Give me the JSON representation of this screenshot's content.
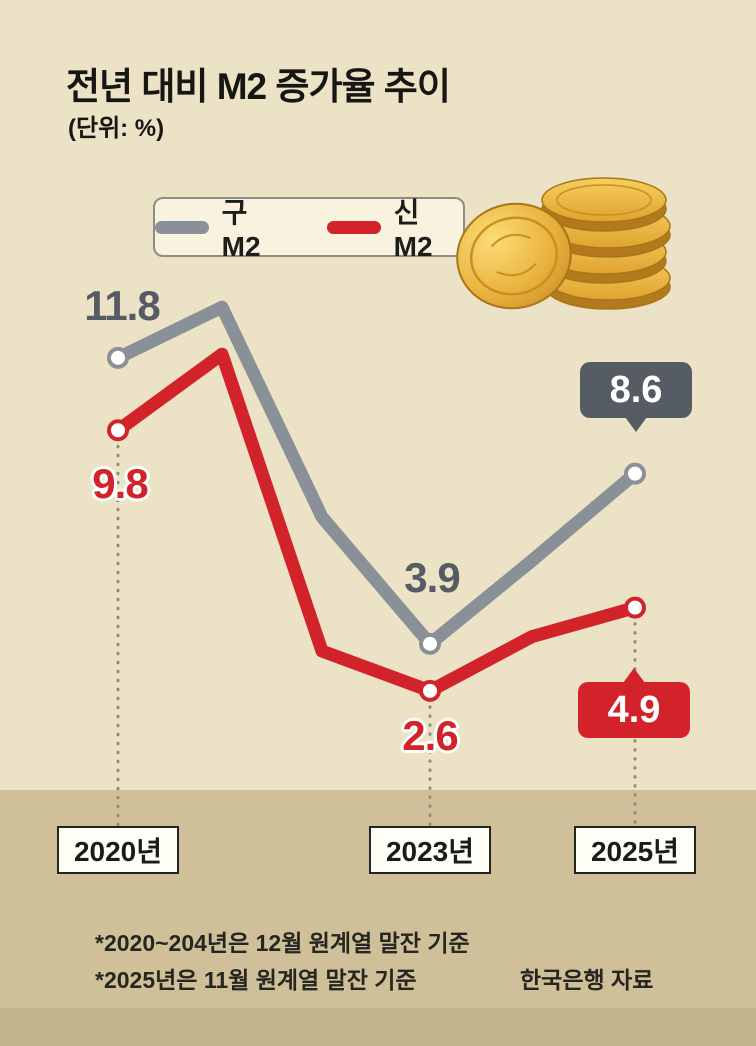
{
  "title": "전년 대비 M2 증가율 추이",
  "subtitle": "(단위: %)",
  "legend": {
    "old_m2": "구 M2",
    "new_m2": "신 M2"
  },
  "chart_data": {
    "type": "line",
    "x": [
      "2020",
      "2021",
      "2022",
      "2023",
      "2024",
      "2025"
    ],
    "x_axis_tick_labels": [
      "2020년",
      "2023년",
      "2025년"
    ],
    "unit": "%",
    "series": [
      {
        "name": "구 M2",
        "color": "#8a9098",
        "values": [
          11.8,
          13.2,
          7.4,
          3.9,
          6.2,
          8.6
        ],
        "labeled_points": {
          "2020": 11.8,
          "2023": 3.9,
          "2025": 8.6
        }
      },
      {
        "name": "신 M2",
        "color": "#d2232b",
        "values": [
          9.8,
          11.9,
          3.7,
          2.6,
          4.1,
          4.9
        ],
        "labeled_points": {
          "2020": 9.8,
          "2023": 2.6,
          "2025": 4.9
        }
      }
    ],
    "note": "Only 2020, 2023, 2025 points are labeled in the image; 2021/2022/2024 values estimated from line geometry",
    "ylim": [
      0,
      15
    ],
    "grid": false,
    "legend_position": "top"
  },
  "point_labels": {
    "old_2020": "11.8",
    "new_2020": "9.8",
    "old_2023": "3.9",
    "new_2023": "2.6"
  },
  "callouts": {
    "old_2025": "8.6",
    "new_2025": "4.9"
  },
  "x_axis": {
    "y2020": "2020년",
    "y2023": "2023년",
    "y2025": "2025년"
  },
  "footnotes": {
    "line1": "*2020~204년은 12월 원계열 말잔 기준",
    "line2": "*2025년은 11월 원계열 말잔 기준",
    "source": "한국은행 자료"
  },
  "colors": {
    "background": "#ece2c6",
    "bottom_band": "#cfc099",
    "bottom_band_dark": "#c3b48b",
    "old_m2_line": "#8a9098",
    "old_m2_dark": "#565c63",
    "new_m2_line": "#d2232b",
    "year_box_bg": "#fffef6",
    "legend_bg": "#f8f2df",
    "coin_gold": "#e8b23f"
  }
}
